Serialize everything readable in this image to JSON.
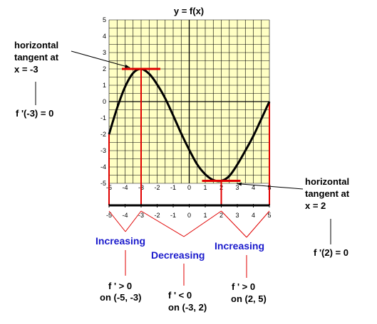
{
  "chart_data": {
    "type": "line",
    "title": "y = f(x)",
    "xlabel": "",
    "ylabel": "",
    "xlim": [
      -5,
      5
    ],
    "ylim": [
      -5,
      5
    ],
    "grid": true,
    "x_ticks": [
      "-5",
      "-4",
      "-3",
      "-2",
      "-1",
      "0",
      "1",
      "2",
      "3",
      "4",
      "5"
    ],
    "y_ticks": [
      "5",
      "4",
      "3",
      "2",
      "1",
      "0",
      "-1",
      "-2",
      "-3",
      "-4",
      "-5"
    ],
    "number_line_ticks": [
      "-5",
      "-4",
      "-3",
      "-2",
      "-1",
      "0",
      "1",
      "2",
      "3",
      "4",
      "5"
    ],
    "series": [
      {
        "x": [
          -5,
          -4.5,
          -4,
          -3.5,
          -3,
          -2.5,
          -2,
          -1.5,
          -1,
          -0.5,
          0,
          0.5,
          1,
          1.5,
          2,
          2.5,
          3,
          3.5,
          4,
          4.5,
          5
        ],
        "y": [
          -2,
          -0.4,
          0.9,
          1.75,
          2,
          1.7,
          1.05,
          0.2,
          -0.85,
          -1.95,
          -2.95,
          -3.85,
          -4.45,
          -4.8,
          -4.85,
          -4.55,
          -3.85,
          -3.0,
          -2.1,
          -1.05,
          0
        ]
      }
    ],
    "tangents": [
      {
        "x": -3,
        "y": 2
      },
      {
        "x": 2,
        "y": -4.85
      }
    ],
    "annotations": {
      "left_tangent": [
        "horizontal",
        "tangent at",
        "x = -3"
      ],
      "left_derivative": "f '(-3) = 0",
      "right_tangent": [
        "horizontal",
        "tangent at",
        "x = 2"
      ],
      "right_derivative": "f '(2) = 0"
    },
    "intervals": [
      {
        "label": "Increasing",
        "line1": "f ' > 0",
        "line2": "on (-5, -3)"
      },
      {
        "label": "Decreasing",
        "line1": "f ' < 0",
        "line2": "on (-3, 2)"
      },
      {
        "label": "Increasing",
        "line1": "f ' > 0",
        "line2": "on (2, 5)"
      }
    ]
  }
}
